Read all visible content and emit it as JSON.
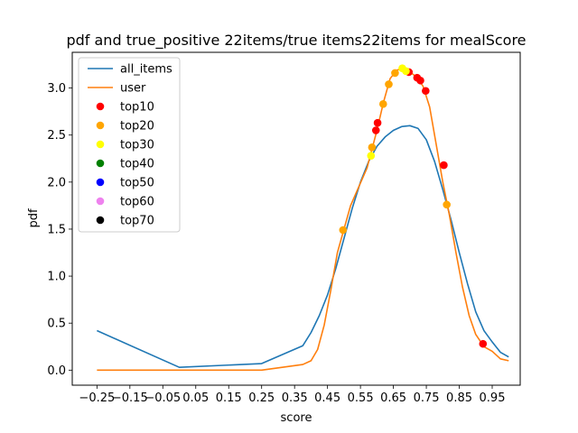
{
  "chart_data": {
    "type": "line",
    "title": "pdf and true_positive 22items/true items22items for mealScore",
    "xlabel": "score",
    "ylabel": "pdf",
    "xlim": [
      -0.325,
      1.035
    ],
    "ylim": [
      -0.16,
      3.38
    ],
    "x_ticks": [
      -0.25,
      -0.15,
      -0.05,
      0.05,
      0.15,
      0.25,
      0.35,
      0.45,
      0.55,
      0.65,
      0.75,
      0.85,
      0.95
    ],
    "x_tick_labels": [
      "−0.25",
      "−0.15",
      "−0.05",
      "0.05",
      "0.15",
      "0.25",
      "0.35",
      "0.45",
      "0.55",
      "0.65",
      "0.75",
      "0.85",
      "0.95"
    ],
    "y_ticks": [
      0.0,
      0.5,
      1.0,
      1.5,
      2.0,
      2.5,
      3.0
    ],
    "y_tick_labels": [
      "0.0",
      "0.5",
      "1.0",
      "1.5",
      "2.0",
      "2.5",
      "3.0"
    ],
    "grid": false,
    "legend_placement": "top-left",
    "series": [
      {
        "name": "all_items",
        "kind": "line",
        "color": "#1f77b4",
        "points": [
          [
            -0.25,
            0.42
          ],
          [
            0.0,
            0.03
          ],
          [
            0.25,
            0.07
          ],
          [
            0.375,
            0.26
          ],
          [
            0.4,
            0.4
          ],
          [
            0.425,
            0.58
          ],
          [
            0.45,
            0.8
          ],
          [
            0.475,
            1.08
          ],
          [
            0.5,
            1.4
          ],
          [
            0.525,
            1.72
          ],
          [
            0.55,
            2.0
          ],
          [
            0.575,
            2.22
          ],
          [
            0.6,
            2.38
          ],
          [
            0.625,
            2.48
          ],
          [
            0.65,
            2.55
          ],
          [
            0.675,
            2.59
          ],
          [
            0.7,
            2.6
          ],
          [
            0.725,
            2.57
          ],
          [
            0.75,
            2.45
          ],
          [
            0.775,
            2.22
          ],
          [
            0.8,
            1.92
          ],
          [
            0.825,
            1.6
          ],
          [
            0.85,
            1.25
          ],
          [
            0.875,
            0.92
          ],
          [
            0.9,
            0.62
          ],
          [
            0.925,
            0.42
          ],
          [
            0.95,
            0.3
          ],
          [
            0.975,
            0.19
          ],
          [
            1.0,
            0.14
          ]
        ]
      },
      {
        "name": "user",
        "kind": "line",
        "color": "#ff7f0e",
        "points": [
          [
            -0.25,
            0.0
          ],
          [
            0.0,
            0.0
          ],
          [
            0.25,
            0.0
          ],
          [
            0.375,
            0.06
          ],
          [
            0.4,
            0.1
          ],
          [
            0.42,
            0.22
          ],
          [
            0.44,
            0.48
          ],
          [
            0.46,
            0.85
          ],
          [
            0.48,
            1.25
          ],
          [
            0.5,
            1.5
          ],
          [
            0.52,
            1.75
          ],
          [
            0.545,
            1.95
          ],
          [
            0.57,
            2.15
          ],
          [
            0.6,
            2.55
          ],
          [
            0.62,
            2.85
          ],
          [
            0.64,
            3.1
          ],
          [
            0.66,
            3.19
          ],
          [
            0.68,
            3.21
          ],
          [
            0.7,
            3.17
          ],
          [
            0.72,
            3.12
          ],
          [
            0.74,
            3.02
          ],
          [
            0.76,
            2.8
          ],
          [
            0.78,
            2.4
          ],
          [
            0.8,
            2.0
          ],
          [
            0.82,
            1.65
          ],
          [
            0.84,
            1.25
          ],
          [
            0.86,
            0.88
          ],
          [
            0.88,
            0.58
          ],
          [
            0.9,
            0.38
          ],
          [
            0.925,
            0.25
          ],
          [
            0.95,
            0.2
          ],
          [
            0.975,
            0.12
          ],
          [
            1.0,
            0.1
          ]
        ]
      },
      {
        "name": "top10",
        "kind": "scatter",
        "color": "#ff0000",
        "points": [
          [
            0.597,
            2.55
          ],
          [
            0.602,
            2.63
          ],
          [
            0.697,
            3.17
          ],
          [
            0.722,
            3.11
          ],
          [
            0.732,
            3.08
          ],
          [
            0.748,
            2.97
          ],
          [
            0.803,
            2.18
          ],
          [
            0.922,
            0.28
          ]
        ]
      },
      {
        "name": "top20",
        "kind": "scatter",
        "color": "#ffa500",
        "points": [
          [
            0.497,
            1.49
          ],
          [
            0.585,
            2.37
          ],
          [
            0.619,
            2.83
          ],
          [
            0.636,
            3.04
          ],
          [
            0.655,
            3.16
          ],
          [
            0.812,
            1.76
          ]
        ]
      },
      {
        "name": "top30",
        "kind": "scatter",
        "color": "#ffff00",
        "points": [
          [
            0.582,
            2.28
          ],
          [
            0.677,
            3.21
          ],
          [
            0.688,
            3.18
          ]
        ]
      },
      {
        "name": "top40",
        "kind": "scatter",
        "color": "#008000",
        "points": []
      },
      {
        "name": "top50",
        "kind": "scatter",
        "color": "#0000ff",
        "points": []
      },
      {
        "name": "top60",
        "kind": "scatter",
        "color": "#ee82ee",
        "points": []
      },
      {
        "name": "top70",
        "kind": "scatter",
        "color": "#000000",
        "points": []
      }
    ]
  }
}
